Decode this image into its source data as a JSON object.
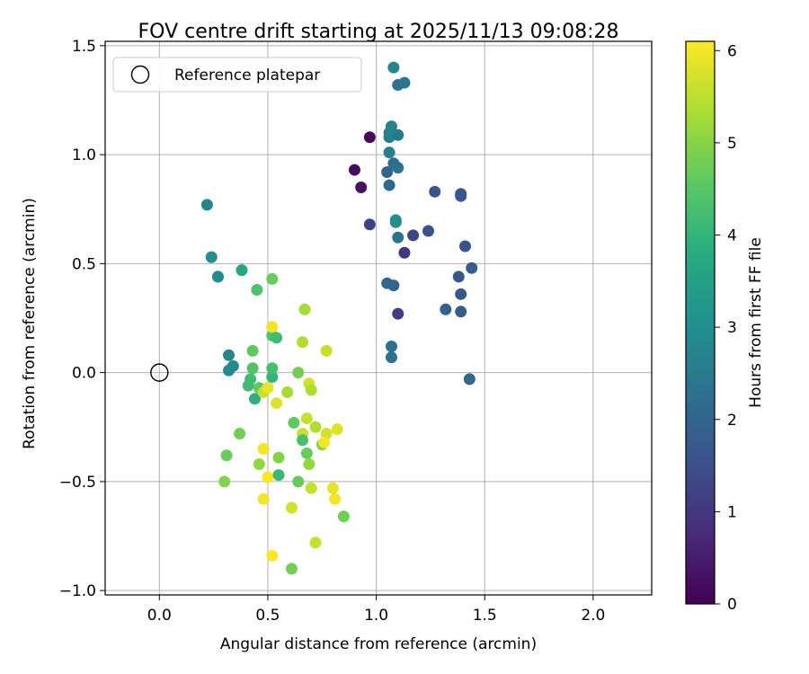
{
  "chart_data": {
    "type": "scatter",
    "title": "FOV centre drift starting at 2025/11/13 09:08:28",
    "xlabel": "Angular distance from reference (arcmin)",
    "ylabel": "Rotation from reference (arcmin)",
    "xlim": [
      -0.25,
      2.27
    ],
    "ylim": [
      -1.02,
      1.52
    ],
    "xticks": [
      0.0,
      0.5,
      1.0,
      1.5,
      2.0
    ],
    "xtick_labels": [
      "0.0",
      "0.5",
      "1.0",
      "1.5",
      "2.0"
    ],
    "yticks": [
      -1.0,
      -0.5,
      0.0,
      0.5,
      1.0,
      1.5
    ],
    "ytick_labels": [
      "−1.0",
      "−0.5",
      "0.0",
      "0.5",
      "1.0",
      "1.5"
    ],
    "grid": true,
    "legend": {
      "location": "upper-left",
      "entries": [
        "Reference platepar"
      ]
    },
    "reference_point": {
      "x": 0.0,
      "y": 0.0,
      "label": "Reference platepar"
    },
    "colorbar": {
      "label": "Hours from first FF file",
      "colormap": "viridis",
      "range": [
        0,
        6.1
      ],
      "ticks": [
        0,
        1,
        2,
        3,
        4,
        5,
        6
      ],
      "tick_labels": [
        "0",
        "1",
        "2",
        "3",
        "4",
        "5",
        "6"
      ]
    },
    "points": [
      {
        "x": 0.97,
        "y": 1.08,
        "hours": 0.1
      },
      {
        "x": 0.9,
        "y": 0.93,
        "hours": 0.2
      },
      {
        "x": 0.93,
        "y": 0.85,
        "hours": 0.3
      },
      {
        "x": 0.97,
        "y": 0.68,
        "hours": 1.2
      },
      {
        "x": 1.1,
        "y": 0.27,
        "hours": 1.1
      },
      {
        "x": 1.13,
        "y": 0.55,
        "hours": 1.0
      },
      {
        "x": 1.17,
        "y": 0.63,
        "hours": 1.3
      },
      {
        "x": 1.24,
        "y": 0.65,
        "hours": 1.6
      },
      {
        "x": 1.27,
        "y": 0.83,
        "hours": 1.6
      },
      {
        "x": 1.39,
        "y": 0.82,
        "hours": 1.7
      },
      {
        "x": 1.39,
        "y": 0.81,
        "hours": 1.7
      },
      {
        "x": 1.41,
        "y": 0.58,
        "hours": 1.6
      },
      {
        "x": 1.44,
        "y": 0.48,
        "hours": 1.8
      },
      {
        "x": 1.38,
        "y": 0.44,
        "hours": 1.7
      },
      {
        "x": 1.39,
        "y": 0.36,
        "hours": 1.7
      },
      {
        "x": 1.32,
        "y": 0.29,
        "hours": 1.9
      },
      {
        "x": 1.39,
        "y": 0.28,
        "hours": 1.8
      },
      {
        "x": 1.43,
        "y": -0.03,
        "hours": 2.1
      },
      {
        "x": 1.05,
        "y": 0.41,
        "hours": 2.1
      },
      {
        "x": 1.08,
        "y": 0.4,
        "hours": 2.0
      },
      {
        "x": 1.07,
        "y": 0.12,
        "hours": 2.3
      },
      {
        "x": 1.07,
        "y": 0.07,
        "hours": 2.3
      },
      {
        "x": 1.06,
        "y": 0.86,
        "hours": 2.1
      },
      {
        "x": 1.05,
        "y": 0.92,
        "hours": 2.0
      },
      {
        "x": 1.08,
        "y": 0.96,
        "hours": 2.2
      },
      {
        "x": 1.1,
        "y": 0.94,
        "hours": 2.3
      },
      {
        "x": 1.06,
        "y": 1.01,
        "hours": 2.6
      },
      {
        "x": 1.06,
        "y": 1.08,
        "hours": 2.6
      },
      {
        "x": 1.06,
        "y": 1.1,
        "hours": 2.7
      },
      {
        "x": 1.07,
        "y": 1.13,
        "hours": 2.7
      },
      {
        "x": 1.1,
        "y": 1.09,
        "hours": 2.5
      },
      {
        "x": 1.1,
        "y": 1.32,
        "hours": 2.3
      },
      {
        "x": 1.13,
        "y": 1.33,
        "hours": 2.4
      },
      {
        "x": 1.08,
        "y": 1.4,
        "hours": 2.8
      },
      {
        "x": 1.1,
        "y": 0.62,
        "hours": 2.4
      },
      {
        "x": 1.09,
        "y": 0.7,
        "hours": 3.1
      },
      {
        "x": 1.09,
        "y": 0.69,
        "hours": 3.0
      },
      {
        "x": 0.22,
        "y": 0.77,
        "hours": 2.8
      },
      {
        "x": 0.24,
        "y": 0.53,
        "hours": 3.0
      },
      {
        "x": 0.27,
        "y": 0.44,
        "hours": 2.8
      },
      {
        "x": 0.27,
        "y": 0.44,
        "hours": 2.9
      },
      {
        "x": 0.38,
        "y": 0.47,
        "hours": 3.6
      },
      {
        "x": 0.32,
        "y": 0.08,
        "hours": 2.8
      },
      {
        "x": 0.34,
        "y": 0.03,
        "hours": 2.9
      },
      {
        "x": 0.32,
        "y": 0.01,
        "hours": 2.9
      },
      {
        "x": 0.45,
        "y": 0.38,
        "hours": 4.4
      },
      {
        "x": 0.52,
        "y": 0.43,
        "hours": 4.7
      },
      {
        "x": 0.43,
        "y": 0.1,
        "hours": 4.6
      },
      {
        "x": 0.43,
        "y": 0.02,
        "hours": 4.4
      },
      {
        "x": 0.42,
        "y": -0.03,
        "hours": 4.2
      },
      {
        "x": 0.41,
        "y": -0.06,
        "hours": 4.2
      },
      {
        "x": 0.44,
        "y": -0.12,
        "hours": 3.9
      },
      {
        "x": 0.46,
        "y": -0.07,
        "hours": 4.6
      },
      {
        "x": 0.52,
        "y": -0.02,
        "hours": 4.0
      },
      {
        "x": 0.52,
        "y": 0.02,
        "hours": 4.3
      },
      {
        "x": 0.52,
        "y": 0.17,
        "hours": 4.4
      },
      {
        "x": 0.54,
        "y": 0.16,
        "hours": 4.2
      },
      {
        "x": 0.52,
        "y": 0.21,
        "hours": 6.0
      },
      {
        "x": 0.48,
        "y": -0.09,
        "hours": 5.6
      },
      {
        "x": 0.5,
        "y": -0.07,
        "hours": 5.9
      },
      {
        "x": 0.54,
        "y": -0.14,
        "hours": 5.8
      },
      {
        "x": 0.59,
        "y": -0.09,
        "hours": 5.3
      },
      {
        "x": 0.66,
        "y": 0.14,
        "hours": 5.4
      },
      {
        "x": 0.67,
        "y": 0.29,
        "hours": 5.3
      },
      {
        "x": 0.64,
        "y": 0.0,
        "hours": 4.8
      },
      {
        "x": 0.69,
        "y": -0.05,
        "hours": 5.7
      },
      {
        "x": 0.7,
        "y": -0.08,
        "hours": 5.4
      },
      {
        "x": 0.77,
        "y": 0.1,
        "hours": 5.6
      },
      {
        "x": 0.37,
        "y": -0.28,
        "hours": 4.8
      },
      {
        "x": 0.31,
        "y": -0.38,
        "hours": 4.7
      },
      {
        "x": 0.3,
        "y": -0.5,
        "hours": 5.0
      },
      {
        "x": 0.46,
        "y": -0.42,
        "hours": 5.1
      },
      {
        "x": 0.48,
        "y": -0.35,
        "hours": 6.0
      },
      {
        "x": 0.5,
        "y": -0.48,
        "hours": 6.1
      },
      {
        "x": 0.48,
        "y": -0.58,
        "hours": 6.0
      },
      {
        "x": 0.55,
        "y": -0.39,
        "hours": 5.0
      },
      {
        "x": 0.55,
        "y": -0.47,
        "hours": 4.1
      },
      {
        "x": 0.62,
        "y": -0.23,
        "hours": 4.6
      },
      {
        "x": 0.66,
        "y": -0.28,
        "hours": 5.6
      },
      {
        "x": 0.66,
        "y": -0.31,
        "hours": 4.3
      },
      {
        "x": 0.68,
        "y": -0.21,
        "hours": 5.6
      },
      {
        "x": 0.68,
        "y": -0.37,
        "hours": 4.7
      },
      {
        "x": 0.69,
        "y": -0.42,
        "hours": 5.1
      },
      {
        "x": 0.72,
        "y": -0.25,
        "hours": 5.4
      },
      {
        "x": 0.75,
        "y": -0.33,
        "hours": 5.0
      },
      {
        "x": 0.77,
        "y": -0.28,
        "hours": 5.7
      },
      {
        "x": 0.76,
        "y": -0.32,
        "hours": 6.0
      },
      {
        "x": 0.82,
        "y": -0.26,
        "hours": 5.8
      },
      {
        "x": 0.64,
        "y": -0.5,
        "hours": 4.7
      },
      {
        "x": 0.7,
        "y": -0.53,
        "hours": 5.6
      },
      {
        "x": 0.61,
        "y": -0.62,
        "hours": 5.7
      },
      {
        "x": 0.8,
        "y": -0.53,
        "hours": 5.9
      },
      {
        "x": 0.81,
        "y": -0.58,
        "hours": 6.0
      },
      {
        "x": 0.85,
        "y": -0.66,
        "hours": 4.8
      },
      {
        "x": 0.72,
        "y": -0.78,
        "hours": 5.6
      },
      {
        "x": 0.52,
        "y": -0.84,
        "hours": 6.1
      },
      {
        "x": 0.61,
        "y": -0.9,
        "hours": 4.8
      }
    ]
  }
}
